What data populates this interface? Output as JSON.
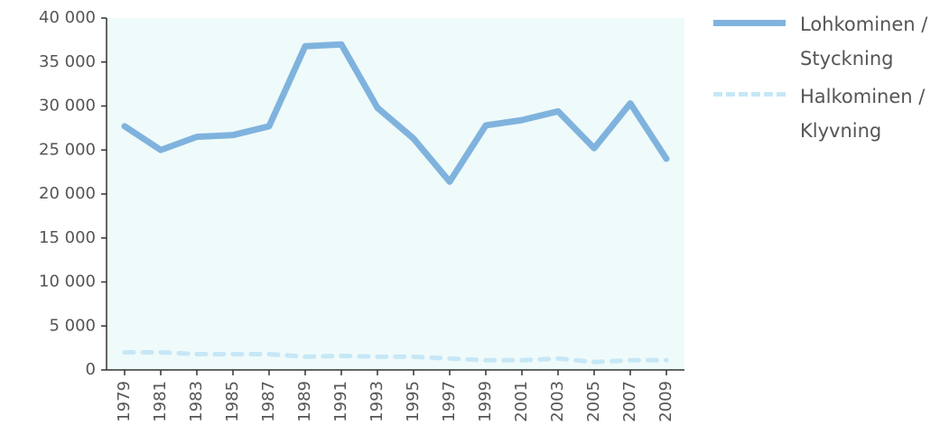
{
  "chart_data": {
    "type": "line",
    "categories": [
      "1979",
      "1981",
      "1983",
      "1985",
      "1987",
      "1989",
      "1991",
      "1993",
      "1995",
      "1997",
      "1999",
      "2001",
      "2003",
      "2005",
      "2007",
      "2009"
    ],
    "series": [
      {
        "name": "Lohkominen / Styckning",
        "color": "#7fb3de",
        "dash": false,
        "values": [
          27700,
          25000,
          26500,
          26700,
          27700,
          36800,
          37000,
          29800,
          26300,
          21400,
          27800,
          28400,
          29400,
          25200,
          30300,
          24000
        ]
      },
      {
        "name": "Halkominen / Klyvning",
        "color": "#c6e7f6",
        "dash": true,
        "values": [
          2000,
          2000,
          1800,
          1800,
          1800,
          1500,
          1600,
          1500,
          1500,
          1300,
          1100,
          1100,
          1300,
          900,
          1100,
          1100
        ]
      }
    ],
    "ylim": [
      0,
      40000
    ],
    "yticks": [
      {
        "value": 0,
        "label": "0"
      },
      {
        "value": 5000,
        "label": "5 000"
      },
      {
        "value": 10000,
        "label": "10 000"
      },
      {
        "value": 15000,
        "label": "15 000"
      },
      {
        "value": 20000,
        "label": "20 000"
      },
      {
        "value": 25000,
        "label": "25 000"
      },
      {
        "value": 30000,
        "label": "30 000"
      },
      {
        "value": 35000,
        "label": "35 000"
      },
      {
        "value": 40000,
        "label": "40 000"
      }
    ],
    "background": "#effafa"
  }
}
